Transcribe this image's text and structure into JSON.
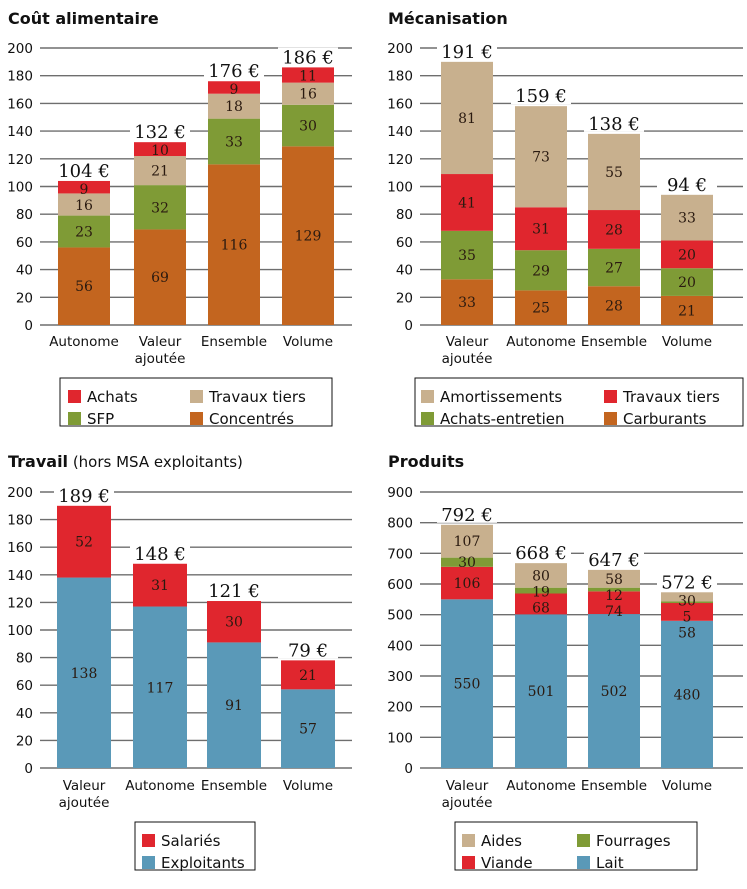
{
  "colors": {
    "achats": "#e0262e",
    "travaux": "#c8b08e",
    "green": "#7f9b36",
    "orange": "#c3651f",
    "blue": "#5a99b8",
    "grid": "#6e6e6e"
  },
  "chart_data": [
    {
      "type": "bar",
      "stacked": true,
      "title": "Coût alimentaire",
      "subtitle": "",
      "ylim": [
        0,
        200
      ],
      "yticks": [
        0,
        20,
        40,
        60,
        80,
        100,
        120,
        140,
        160,
        180,
        200
      ],
      "categories": [
        "Autonome",
        "Valeur ajoutée",
        "Ensemble",
        "Volume"
      ],
      "totals": [
        "104 €",
        "132 €",
        "176 €",
        "186 €"
      ],
      "series": [
        {
          "name": "Concentrés",
          "color": "#c3651f",
          "values": [
            56,
            69,
            116,
            129
          ]
        },
        {
          "name": "SFP",
          "color": "#7f9b36",
          "values": [
            23,
            32,
            33,
            30
          ]
        },
        {
          "name": "Travaux tiers",
          "color": "#c8b08e",
          "values": [
            16,
            21,
            18,
            16
          ]
        },
        {
          "name": "Achats",
          "color": "#e0262e",
          "values": [
            9,
            10,
            9,
            11
          ]
        }
      ],
      "legend": [
        "Achats",
        "Travaux tiers",
        "SFP",
        "Concentrés"
      ],
      "legend_placement": "bottom"
    },
    {
      "type": "bar",
      "stacked": true,
      "title": "Mécanisation",
      "subtitle": "",
      "ylim": [
        0,
        200
      ],
      "yticks": [
        0,
        20,
        40,
        60,
        80,
        100,
        120,
        140,
        160,
        180,
        200
      ],
      "categories": [
        "Valeur ajoutée",
        "Autonome",
        "Ensemble",
        "Volume"
      ],
      "totals": [
        "191 €",
        "159 €",
        "138 €",
        "94 €"
      ],
      "series": [
        {
          "name": "Carburants",
          "color": "#c3651f",
          "values": [
            33,
            25,
            28,
            21
          ]
        },
        {
          "name": "Achats-entretien",
          "color": "#7f9b36",
          "values": [
            35,
            29,
            27,
            20
          ]
        },
        {
          "name": "Travaux tiers",
          "color": "#e0262e",
          "values": [
            41,
            31,
            28,
            20
          ]
        },
        {
          "name": "Amortissements",
          "color": "#c8b08e",
          "values": [
            81,
            73,
            55,
            33
          ]
        }
      ],
      "legend": [
        "Amortissements",
        "Travaux tiers",
        "Achats-entretien",
        "Carburants"
      ],
      "legend_placement": "bottom"
    },
    {
      "type": "bar",
      "stacked": true,
      "title": "Travail",
      "subtitle": "(hors MSA exploitants)",
      "ylim": [
        0,
        200
      ],
      "yticks": [
        0,
        20,
        40,
        60,
        80,
        100,
        120,
        140,
        160,
        180,
        200
      ],
      "categories": [
        "Valeur ajoutée",
        "Autonome",
        "Ensemble",
        "Volume"
      ],
      "totals": [
        "189 €",
        "148 €",
        "121 €",
        "79 €"
      ],
      "series": [
        {
          "name": "Exploitants",
          "color": "#5a99b8",
          "values": [
            138,
            117,
            91,
            57
          ]
        },
        {
          "name": "Salariés",
          "color": "#e0262e",
          "values": [
            52,
            31,
            30,
            21
          ]
        }
      ],
      "legend": [
        "Salariés",
        "Exploitants"
      ],
      "legend_placement": "bottom"
    },
    {
      "type": "bar",
      "stacked": true,
      "title": "Produits",
      "subtitle": "",
      "ylim": [
        0,
        900
      ],
      "yticks": [
        0,
        100,
        200,
        300,
        400,
        500,
        600,
        700,
        800,
        900
      ],
      "categories": [
        "Valeur ajoutée",
        "Autonome",
        "Ensemble",
        "Volume"
      ],
      "totals": [
        "792 €",
        "668 €",
        "647 €",
        "572 €"
      ],
      "series": [
        {
          "name": "Lait",
          "color": "#5a99b8",
          "values": [
            550,
            501,
            502,
            480
          ]
        },
        {
          "name": "Viande",
          "color": "#e0262e",
          "values": [
            106,
            68,
            74,
            58
          ]
        },
        {
          "name": "Fourrages",
          "color": "#7f9b36",
          "values": [
            30,
            19,
            12,
            5
          ]
        },
        {
          "name": "Aides",
          "color": "#c8b08e",
          "values": [
            107,
            80,
            58,
            30
          ]
        }
      ],
      "legend": [
        "Aides",
        "Fourrages",
        "Viande",
        "Lait"
      ],
      "legend_placement": "bottom"
    }
  ]
}
